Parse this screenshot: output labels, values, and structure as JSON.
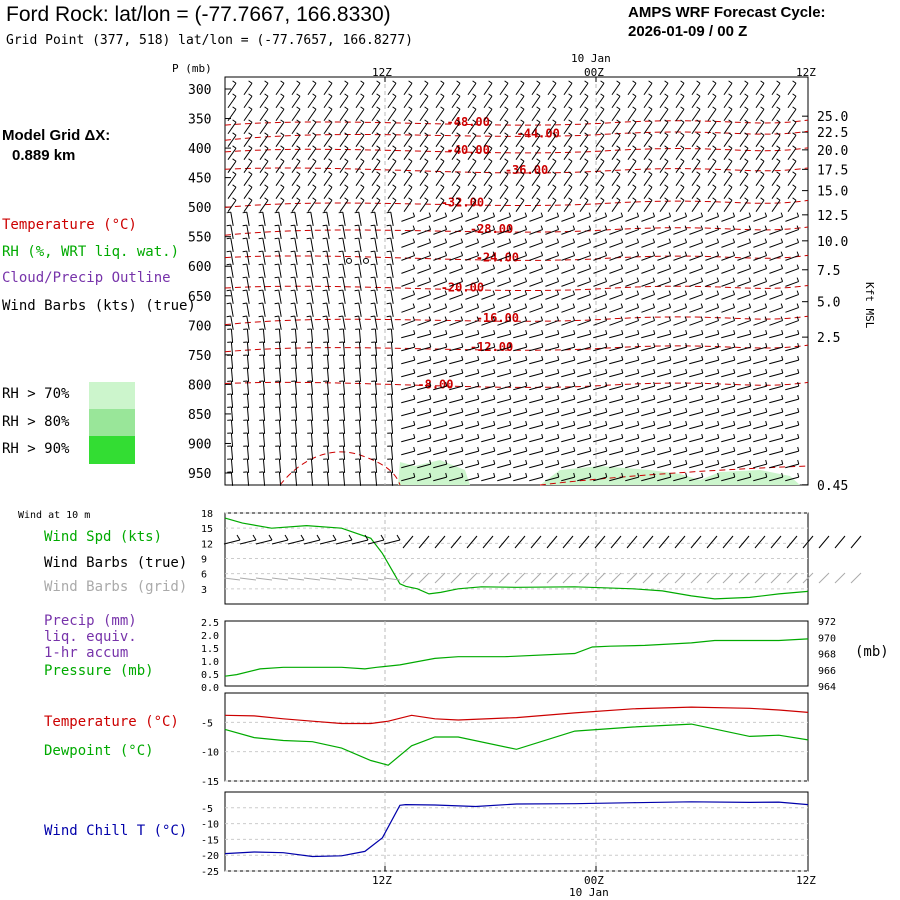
{
  "header": {
    "title": "Ford Rock:  lat/lon = (-77.7667, 166.8330)",
    "subtitle": "Grid Point (377, 518) lat/lon = (-77.7657, 166.8277)",
    "cycle_line1": "AMPS WRF Forecast Cycle:",
    "cycle_line2": "2026-01-09 / 00  Z",
    "grid_label": "Model Grid ΔX:",
    "grid_value": "0.889 km"
  },
  "legend": {
    "temperature": "Temperature (°C)",
    "rh": "RH (%, WRT liq. wat.)",
    "cloud": "Cloud/Precip Outline",
    "wind": "Wind Barbs (kts) (true)",
    "rh70": "RH > 70%",
    "rh80": "RH > 80%",
    "rh90": "RH > 90%",
    "p_label": "P (mb)",
    "kft_label": "Kft MSL",
    "wind10m": "Wind at 10 m",
    "wind_spd": "Wind Spd (kts)",
    "wind_barbs_true": "Wind Barbs (true)",
    "wind_barbs_grid": "Wind Barbs (grid)",
    "precip": "Precip (mm)",
    "liq": "liq. equiv.",
    "accum": "1-hr accum",
    "pressure": "Pressure (mb)",
    "mb_unit": "(mb)",
    "temp2": "Temperature (°C)",
    "dewpoint": "Dewpoint (°C)",
    "windchill": "Wind Chill T (°C)"
  },
  "colors": {
    "temp": "#cc0000",
    "rh": "#00aa00",
    "cloud": "#7733aa",
    "grey": "#aaaaaa",
    "navy": "#0000aa",
    "rh70": "#ccf5cc",
    "rh80": "#99e699",
    "rh90": "#33dd33"
  },
  "time_axis": {
    "top_labels": [
      "12Z",
      "00Z",
      "12Z"
    ],
    "date_label": "10 Jan",
    "bottom_labels": [
      "12Z",
      "00Z",
      "12Z"
    ]
  },
  "chart_data": [
    {
      "type": "line",
      "name": "time-height cross section",
      "ylabel": "P (mb)",
      "pressure_levels": [
        300,
        350,
        400,
        450,
        500,
        550,
        600,
        650,
        700,
        750,
        800,
        850,
        900,
        950
      ],
      "height_kft": [
        "25.0",
        "22.5",
        "20.0",
        "17.5",
        "15.0",
        "12.5",
        "10.0",
        "7.5",
        "5.0",
        "2.5",
        "0.45"
      ],
      "height_kft_values": [
        25.0,
        22.5,
        20.0,
        17.5,
        15.0,
        12.5,
        10.0,
        7.5,
        5.0,
        2.5,
        0.45
      ],
      "height_kft_pressure": [
        346,
        373,
        403,
        436,
        472,
        513,
        557,
        606,
        660,
        720,
        970
      ],
      "isotherm_labels": [
        "-48.00",
        "-44.00",
        "-40.00",
        "-36.00",
        "-32.00",
        "-28.00",
        "-24.00",
        "-20.00",
        "-16.00",
        "-12.00",
        "-8.00"
      ],
      "isotherm_positions": [
        [
          0.38,
          356
        ],
        [
          0.5,
          375
        ],
        [
          0.38,
          403
        ],
        [
          0.48,
          437
        ],
        [
          0.37,
          492
        ],
        [
          0.42,
          537
        ],
        [
          0.43,
          585
        ],
        [
          0.37,
          636
        ],
        [
          0.43,
          688
        ],
        [
          0.42,
          737
        ],
        [
          0.33,
          800
        ]
      ]
    },
    {
      "type": "line",
      "name": "10 m wind speed",
      "ylabel": "Wind Spd (kts)",
      "yticks": [
        "18",
        "15",
        "12",
        "9",
        "6",
        "3"
      ],
      "ylim": [
        0,
        18
      ],
      "x": [
        0,
        0.03,
        0.08,
        0.14,
        0.2,
        0.25,
        0.27,
        0.29,
        0.3,
        0.31,
        0.33,
        0.35,
        0.37,
        0.4,
        0.44,
        0.5,
        0.6,
        0.7,
        0.75,
        0.8,
        0.84,
        0.9,
        0.95,
        1.0
      ],
      "values": [
        17,
        16,
        15,
        15.5,
        15,
        13,
        10,
        6,
        4,
        3.5,
        3,
        2,
        2.3,
        3,
        3.4,
        3.3,
        3.4,
        3.0,
        2.6,
        1.6,
        1.0,
        1.3,
        2.0,
        2.5
      ]
    },
    {
      "type": "line",
      "name": "precip and pressure",
      "ylabel_left": "Precip (mm)",
      "ylabel_right": "Pressure (mb)",
      "yticks_left": [
        "2.5",
        "2.0",
        "1.5",
        "1.0",
        "0.5",
        "0.0"
      ],
      "yticks_right": [
        "972",
        "970",
        "968",
        "966",
        "964"
      ],
      "ylim_right": [
        964,
        972
      ],
      "x": [
        0,
        0.02,
        0.06,
        0.1,
        0.2,
        0.24,
        0.26,
        0.3,
        0.36,
        0.4,
        0.48,
        0.6,
        0.63,
        0.66,
        0.72,
        0.8,
        0.84,
        0.9,
        0.95,
        1.0
      ],
      "pressure": [
        965.2,
        965.4,
        966.1,
        966.3,
        966.3,
        966.1,
        966.3,
        966.6,
        967.4,
        967.6,
        967.6,
        968,
        968.8,
        968.9,
        969,
        969.3,
        969.6,
        969.6,
        969.6,
        969.8
      ]
    },
    {
      "type": "line",
      "name": "temperature and dewpoint",
      "yticks": [
        "-5",
        "-10",
        "-15"
      ],
      "ylim": [
        -15,
        0
      ],
      "x": [
        0,
        0.05,
        0.1,
        0.15,
        0.2,
        0.25,
        0.28,
        0.32,
        0.36,
        0.4,
        0.5,
        0.6,
        0.7,
        0.8,
        0.9,
        0.95,
        1.0
      ],
      "temperature": [
        -3.8,
        -3.9,
        -4.4,
        -4.8,
        -5.2,
        -5.2,
        -4.8,
        -3.8,
        -4.4,
        -4.6,
        -4.2,
        -3.4,
        -2.7,
        -2.4,
        -2.6,
        -2.9,
        -3.3
      ],
      "dewpoint": [
        -6.2,
        -7.6,
        -8.1,
        -8.3,
        -9.4,
        -11.5,
        -12.3,
        -9.0,
        -7.5,
        -7.5,
        -9.6,
        -6.5,
        -5.8,
        -5.3,
        -7.4,
        -7.2,
        -8.0
      ]
    },
    {
      "type": "line",
      "name": "wind chill",
      "ylabel": "Wind Chill T (°C)",
      "yticks": [
        "-5",
        "-10",
        "-15",
        "-20",
        "-25"
      ],
      "ylim": [
        -25,
        0
      ],
      "x": [
        0,
        0.05,
        0.1,
        0.15,
        0.2,
        0.24,
        0.27,
        0.3,
        0.31,
        0.36,
        0.43,
        0.5,
        0.6,
        0.7,
        0.8,
        0.9,
        0.95,
        1.0
      ],
      "values": [
        -19.5,
        -19.0,
        -19.2,
        -20.4,
        -20.2,
        -18.8,
        -14.5,
        -4.2,
        -4.0,
        -4.1,
        -4.6,
        -3.8,
        -3.7,
        -3.4,
        -3.1,
        -3.3,
        -3.2,
        -4.0
      ]
    }
  ]
}
